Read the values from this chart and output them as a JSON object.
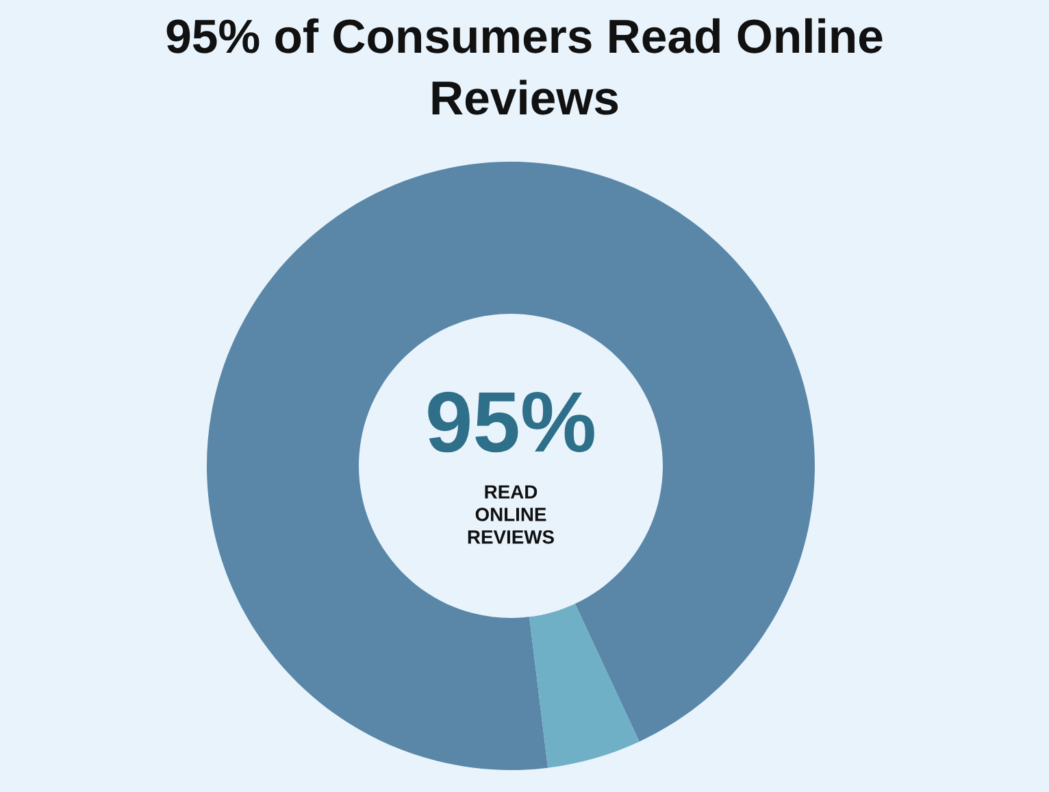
{
  "chart_data": {
    "type": "donut",
    "title": "95% of Consumers Read Online Reviews",
    "categories": [
      "READ ONLINE REVIEWS",
      null
    ],
    "values": [
      95,
      5
    ],
    "colors": [
      "#5a87a8",
      "#6fb0c6"
    ],
    "value_labels": [
      "95%",
      null
    ]
  }
}
